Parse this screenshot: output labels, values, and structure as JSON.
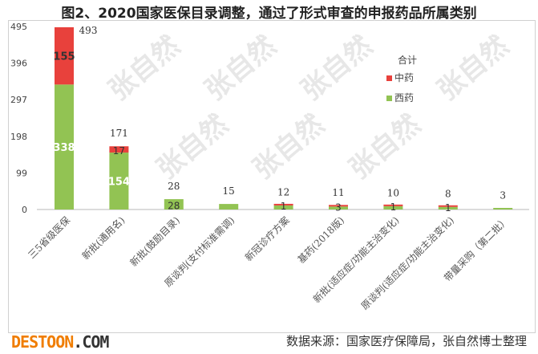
{
  "chart_data": {
    "type": "bar",
    "stacked": true,
    "title": "图2、2020国家医保目录调整，通过了形式审查的申报药品所属类别",
    "categories": [
      "三5省级医保",
      "新批(通用名)",
      "新批(鼓励目录)",
      "原谈判(支付标准需调)",
      "新冠诊疗方案",
      "基药(2018版)",
      "新批(适应症/功能主治变化)",
      "原谈判(适应症/功能主治变化)",
      "带量采购（第二批）"
    ],
    "series": [
      {
        "name": "西药",
        "color": "#92c353",
        "values": [
          338,
          154,
          28,
          15,
          11,
          8,
          9,
          7,
          3
        ]
      },
      {
        "name": "中药",
        "color": "#e8413c",
        "values": [
          155,
          17,
          0,
          0,
          1,
          3,
          1,
          1,
          0
        ]
      }
    ],
    "totals": [
      493,
      171,
      28,
      15,
      12,
      11,
      10,
      8,
      3
    ],
    "legend_title": "合计",
    "legend_position": "right",
    "yticks": [
      0,
      99,
      198,
      297,
      396,
      495
    ],
    "ylim": [
      0,
      495
    ],
    "xlabel": "",
    "ylabel": ""
  },
  "source": "数据来源：国家医疗保障局，张自然博士整理",
  "watermark": "张自然",
  "logo": {
    "main": "DESTOON",
    "suffix": ".COM"
  }
}
